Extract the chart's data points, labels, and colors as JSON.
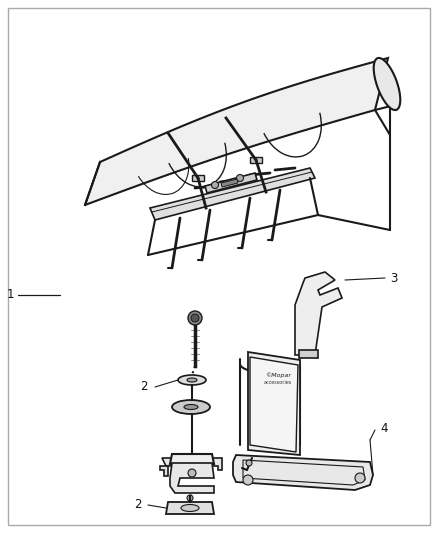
{
  "background_color": "#ffffff",
  "border_color": "#aaaaaa",
  "line_color": "#1a1a1a",
  "label_color": "#111111",
  "fig_width": 4.38,
  "fig_height": 5.33,
  "dpi": 100,
  "label_fontsize": 8.5
}
